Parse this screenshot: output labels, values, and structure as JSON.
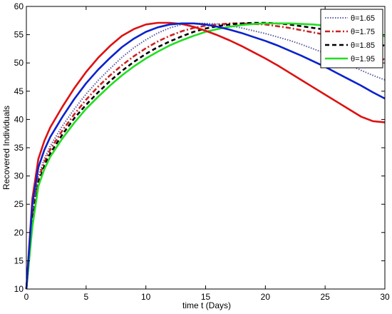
{
  "chart_data": {
    "type": "line",
    "xlabel": "time t (Days)",
    "ylabel": "Recovered Individuals",
    "xlim": [
      0,
      30
    ],
    "ylim": [
      10,
      60
    ],
    "xticks": [
      0,
      5,
      10,
      15,
      20,
      25,
      30
    ],
    "yticks": [
      10,
      15,
      20,
      25,
      30,
      35,
      40,
      45,
      50,
      55,
      60
    ],
    "grid": false,
    "legend_position": "top-right",
    "x": [
      0,
      0.5,
      1,
      1.5,
      2,
      3,
      4,
      5,
      6,
      7,
      8,
      9,
      10,
      11,
      12,
      13,
      14,
      15,
      16,
      17,
      18,
      19,
      20,
      21,
      22,
      23,
      24,
      25,
      26,
      27,
      28,
      29,
      30
    ],
    "series": [
      {
        "name": "θ=1.65",
        "color": "#5a5aa0",
        "dash": "dotted",
        "values": [
          10,
          24,
          30,
          33,
          35.3,
          38.8,
          41.8,
          44.5,
          46.9,
          49.0,
          51.0,
          52.7,
          54.1,
          55.3,
          56.2,
          56.8,
          57.0,
          57.0,
          56.9,
          56.6,
          56.2,
          55.7,
          55.2,
          54.6,
          54.0,
          53.3,
          52.5,
          51.7,
          50.8,
          49.7,
          48.7,
          47.8,
          47.0
        ]
      },
      {
        "name": "θ=1.75",
        "color": "#cc2222",
        "dash": "dashdot",
        "values": [
          10,
          23,
          29.5,
          32.4,
          34.7,
          38.0,
          40.9,
          43.5,
          45.8,
          47.8,
          49.6,
          51.2,
          52.6,
          53.8,
          54.8,
          55.6,
          56.2,
          56.6,
          56.8,
          57.0,
          57.0,
          56.9,
          56.8,
          56.5,
          56.2,
          55.8,
          55.4,
          55.0,
          54.6,
          53.9,
          53.0,
          51.8,
          50.5
        ]
      },
      {
        "name": "θ=1.85",
        "color": "#000000",
        "dash": "dashed",
        "values": [
          10,
          22,
          28.8,
          31.8,
          34.0,
          37.3,
          40.2,
          42.6,
          44.8,
          46.8,
          48.6,
          50.2,
          51.6,
          52.8,
          53.8,
          54.7,
          55.5,
          56.1,
          56.5,
          56.8,
          57.0,
          57.1,
          57.1,
          57.0,
          56.8,
          56.5,
          56.2,
          55.9,
          55.6,
          55.1,
          54.5,
          53.8,
          53.0
        ]
      },
      {
        "name": "θ=1.95",
        "color": "#22dd22",
        "dash": "solid",
        "values": [
          10,
          21,
          28.2,
          31.2,
          33.4,
          36.6,
          39.4,
          41.9,
          44.0,
          46.0,
          47.8,
          49.4,
          50.8,
          52.0,
          53.1,
          54.0,
          54.8,
          55.5,
          56.0,
          56.4,
          56.7,
          56.9,
          57.0,
          57.0,
          57.0,
          56.9,
          56.8,
          56.6,
          56.4,
          56.1,
          55.7,
          55.2,
          54.7
        ]
      },
      {
        "name": "",
        "color": "#dd1111",
        "dash": "solid",
        "values": [
          10,
          26,
          33,
          36.2,
          38.6,
          42.2,
          45.5,
          48.4,
          50.9,
          53.0,
          54.8,
          56.0,
          56.8,
          57.1,
          57.1,
          56.9,
          56.4,
          55.7,
          54.9,
          54.0,
          53.0,
          51.9,
          50.8,
          49.6,
          48.3,
          47.0,
          45.7,
          44.4,
          43.1,
          41.8,
          40.5,
          39.7,
          39.5
        ]
      },
      {
        "name": "",
        "color": "#0a22cc",
        "dash": "solid",
        "values": [
          10,
          25,
          31.5,
          34.6,
          36.9,
          40.4,
          43.6,
          46.4,
          48.8,
          50.9,
          52.8,
          54.3,
          55.5,
          56.3,
          56.8,
          57.0,
          57.0,
          56.8,
          56.4,
          55.9,
          55.3,
          54.6,
          53.9,
          53.1,
          52.2,
          51.3,
          50.3,
          49.3,
          48.2,
          47.1,
          46.0,
          44.8,
          43.7
        ]
      }
    ]
  }
}
